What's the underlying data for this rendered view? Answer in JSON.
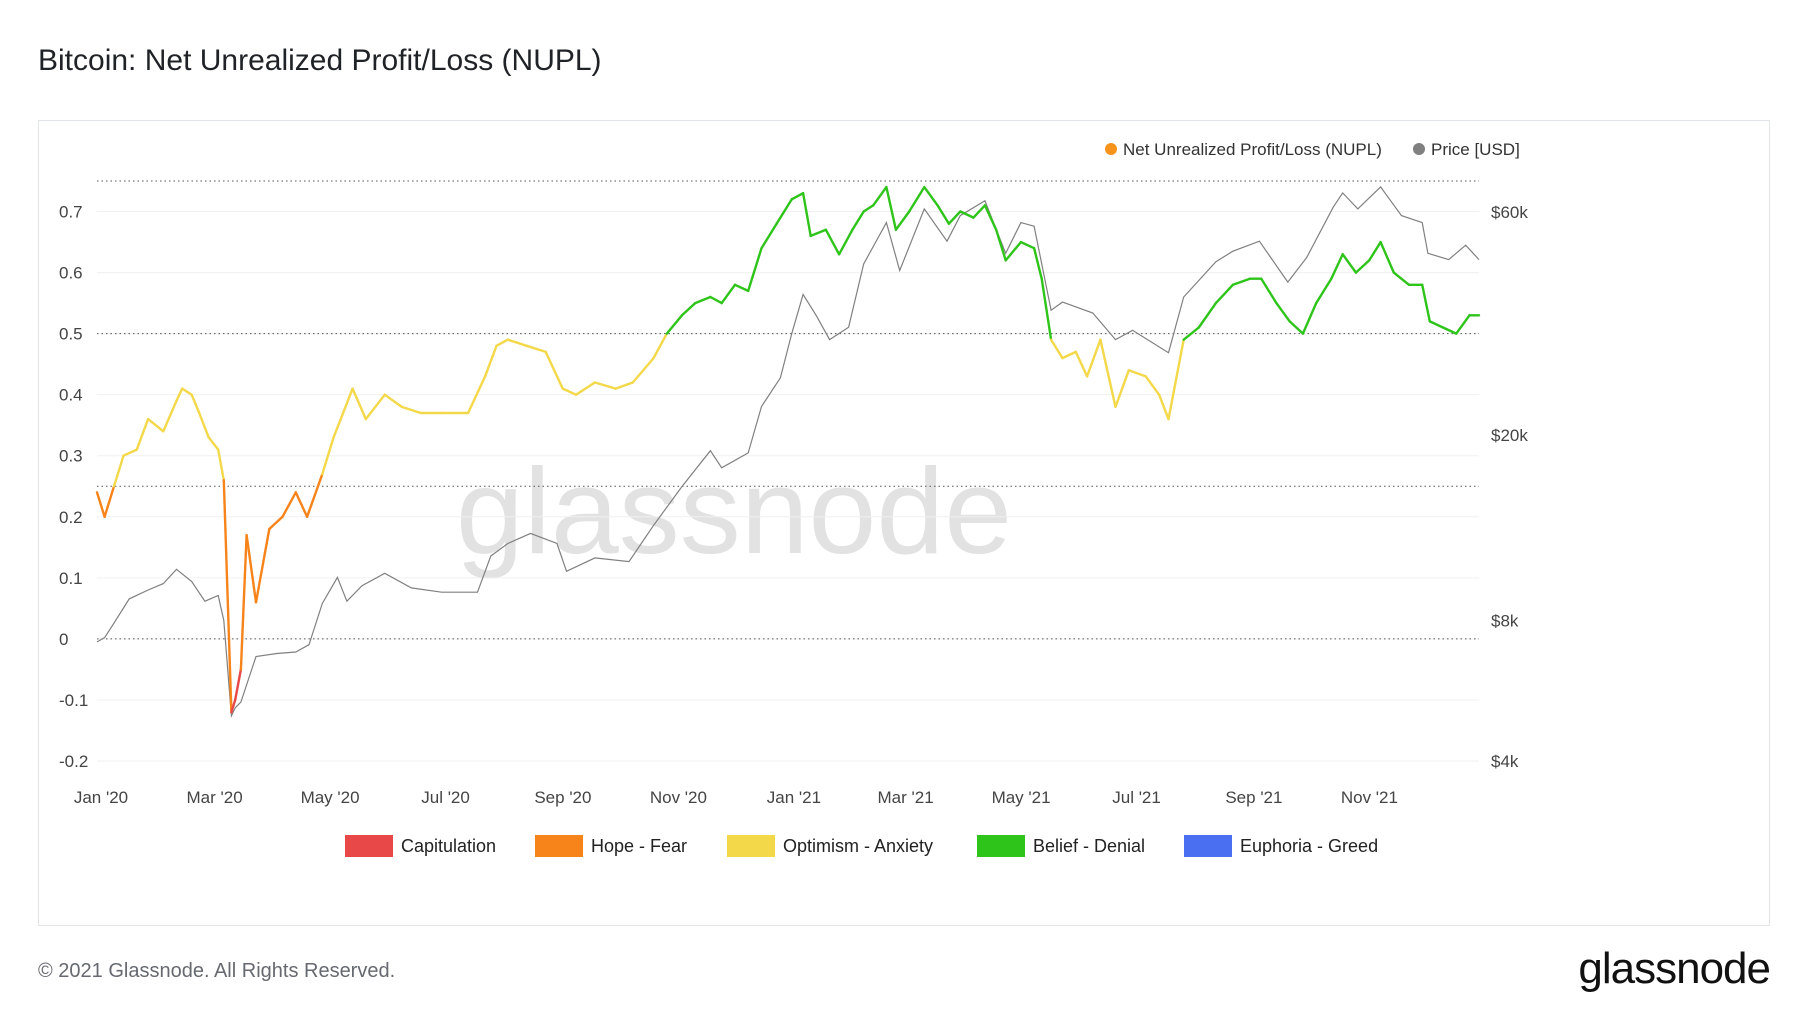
{
  "title": "Bitcoin: Net Unrealized Profit/Loss (NUPL)",
  "footer": {
    "copyright": "© 2021 Glassnode. All Rights Reserved.",
    "logo": "glassnode"
  },
  "watermark": "glassnode",
  "chart_data": {
    "type": "line",
    "title": "Bitcoin: Net Unrealized Profit/Loss (NUPL)",
    "legend_top": [
      {
        "label": "Net Unrealized Profit/Loss (NUPL)",
        "color": "#f7931a"
      },
      {
        "label": "Price [USD]",
        "color": "#808080"
      }
    ],
    "legend_bottom": [
      {
        "label": "Capitulation",
        "color": "#e94848"
      },
      {
        "label": "Hope - Fear",
        "color": "#f7841a"
      },
      {
        "label": "Optimism - Anxiety",
        "color": "#f3d84a"
      },
      {
        "label": "Belief - Denial",
        "color": "#2ec41a"
      },
      {
        "label": "Euphoria - Greed",
        "color": "#4a6ff0"
      }
    ],
    "x_ticks": [
      "Jan '20",
      "Mar '20",
      "May '20",
      "Jul '20",
      "Sep '20",
      "Nov '20",
      "Jan '21",
      "Mar '21",
      "May '21",
      "Jul '21",
      "Sep '21",
      "Nov '21"
    ],
    "y_left": {
      "ticks": [
        "-0.2",
        "-0.1",
        "0",
        "0.1",
        "0.2",
        "0.3",
        "0.4",
        "0.5",
        "0.6",
        "0.7"
      ],
      "range": [
        -0.2,
        0.75
      ]
    },
    "y_right": {
      "ticks": [
        "$4k",
        "$8k",
        "$20k",
        "$60k"
      ],
      "range": [
        4000,
        70000
      ],
      "scale": "log"
    },
    "zone_thresholds": [
      0,
      0.25,
      0.5,
      0.75
    ],
    "x_range": [
      "2020-01-01",
      "2021-12-31"
    ],
    "series": [
      {
        "name": "Net Unrealized Profit/Loss (NUPL)",
        "axis": "left",
        "points": [
          [
            "2020-01-01",
            0.24
          ],
          [
            "2020-01-05",
            0.2
          ],
          [
            "2020-01-10",
            0.25
          ],
          [
            "2020-01-15",
            0.3
          ],
          [
            "2020-01-22",
            0.31
          ],
          [
            "2020-01-28",
            0.36
          ],
          [
            "2020-02-05",
            0.34
          ],
          [
            "2020-02-12",
            0.39
          ],
          [
            "2020-02-15",
            0.41
          ],
          [
            "2020-02-20",
            0.4
          ],
          [
            "2020-02-24",
            0.37
          ],
          [
            "2020-02-29",
            0.33
          ],
          [
            "2020-03-05",
            0.31
          ],
          [
            "2020-03-08",
            0.26
          ],
          [
            "2020-03-12",
            -0.12
          ],
          [
            "2020-03-14",
            -0.1
          ],
          [
            "2020-03-17",
            -0.05
          ],
          [
            "2020-03-20",
            0.17
          ],
          [
            "2020-03-25",
            0.06
          ],
          [
            "2020-04-01",
            0.18
          ],
          [
            "2020-04-08",
            0.2
          ],
          [
            "2020-04-15",
            0.24
          ],
          [
            "2020-04-21",
            0.2
          ],
          [
            "2020-04-29",
            0.27
          ],
          [
            "2020-05-05",
            0.33
          ],
          [
            "2020-05-10",
            0.37
          ],
          [
            "2020-05-15",
            0.41
          ],
          [
            "2020-05-22",
            0.36
          ],
          [
            "2020-06-01",
            0.4
          ],
          [
            "2020-06-10",
            0.38
          ],
          [
            "2020-06-20",
            0.37
          ],
          [
            "2020-07-01",
            0.37
          ],
          [
            "2020-07-15",
            0.37
          ],
          [
            "2020-07-24",
            0.43
          ],
          [
            "2020-07-30",
            0.48
          ],
          [
            "2020-08-05",
            0.49
          ],
          [
            "2020-08-15",
            0.48
          ],
          [
            "2020-08-25",
            0.47
          ],
          [
            "2020-09-03",
            0.41
          ],
          [
            "2020-09-10",
            0.4
          ],
          [
            "2020-09-20",
            0.42
          ],
          [
            "2020-10-01",
            0.41
          ],
          [
            "2020-10-10",
            0.42
          ],
          [
            "2020-10-21",
            0.46
          ],
          [
            "2020-10-28",
            0.5
          ],
          [
            "2020-11-05",
            0.53
          ],
          [
            "2020-11-12",
            0.55
          ],
          [
            "2020-11-20",
            0.56
          ],
          [
            "2020-11-26",
            0.55
          ],
          [
            "2020-12-03",
            0.58
          ],
          [
            "2020-12-10",
            0.57
          ],
          [
            "2020-12-17",
            0.64
          ],
          [
            "2020-12-25",
            0.68
          ],
          [
            "2021-01-02",
            0.72
          ],
          [
            "2021-01-08",
            0.73
          ],
          [
            "2021-01-12",
            0.66
          ],
          [
            "2021-01-20",
            0.67
          ],
          [
            "2021-01-27",
            0.63
          ],
          [
            "2021-02-03",
            0.67
          ],
          [
            "2021-02-09",
            0.7
          ],
          [
            "2021-02-14",
            0.71
          ],
          [
            "2021-02-21",
            0.74
          ],
          [
            "2021-02-26",
            0.67
          ],
          [
            "2021-03-05",
            0.7
          ],
          [
            "2021-03-13",
            0.74
          ],
          [
            "2021-03-20",
            0.71
          ],
          [
            "2021-03-26",
            0.68
          ],
          [
            "2021-04-01",
            0.7
          ],
          [
            "2021-04-08",
            0.69
          ],
          [
            "2021-04-14",
            0.71
          ],
          [
            "2021-04-20",
            0.67
          ],
          [
            "2021-04-25",
            0.62
          ],
          [
            "2021-05-03",
            0.65
          ],
          [
            "2021-05-10",
            0.64
          ],
          [
            "2021-05-14",
            0.59
          ],
          [
            "2021-05-19",
            0.49
          ],
          [
            "2021-05-25",
            0.46
          ],
          [
            "2021-06-01",
            0.47
          ],
          [
            "2021-06-07",
            0.43
          ],
          [
            "2021-06-14",
            0.49
          ],
          [
            "2021-06-22",
            0.38
          ],
          [
            "2021-06-29",
            0.44
          ],
          [
            "2021-07-08",
            0.43
          ],
          [
            "2021-07-15",
            0.4
          ],
          [
            "2021-07-20",
            0.36
          ],
          [
            "2021-07-28",
            0.49
          ],
          [
            "2021-08-05",
            0.51
          ],
          [
            "2021-08-14",
            0.55
          ],
          [
            "2021-08-23",
            0.58
          ],
          [
            "2021-09-01",
            0.59
          ],
          [
            "2021-09-07",
            0.59
          ],
          [
            "2021-09-15",
            0.55
          ],
          [
            "2021-09-22",
            0.52
          ],
          [
            "2021-09-29",
            0.5
          ],
          [
            "2021-10-06",
            0.55
          ],
          [
            "2021-10-14",
            0.59
          ],
          [
            "2021-10-20",
            0.63
          ],
          [
            "2021-10-27",
            0.6
          ],
          [
            "2021-11-03",
            0.62
          ],
          [
            "2021-11-09",
            0.65
          ],
          [
            "2021-11-16",
            0.6
          ],
          [
            "2021-11-24",
            0.58
          ],
          [
            "2021-12-01",
            0.58
          ],
          [
            "2021-12-05",
            0.52
          ],
          [
            "2021-12-12",
            0.51
          ],
          [
            "2021-12-19",
            0.5
          ],
          [
            "2021-12-26",
            0.53
          ],
          [
            "2021-12-31",
            0.53
          ]
        ]
      },
      {
        "name": "Price [USD]",
        "axis": "right",
        "color": "#808080",
        "points": [
          [
            "2020-01-01",
            7200
          ],
          [
            "2020-01-05",
            7350
          ],
          [
            "2020-01-10",
            7900
          ],
          [
            "2020-01-18",
            8900
          ],
          [
            "2020-01-28",
            9300
          ],
          [
            "2020-02-05",
            9600
          ],
          [
            "2020-02-12",
            10300
          ],
          [
            "2020-02-20",
            9700
          ],
          [
            "2020-02-27",
            8800
          ],
          [
            "2020-03-05",
            9050
          ],
          [
            "2020-03-08",
            8000
          ],
          [
            "2020-03-12",
            5000
          ],
          [
            "2020-03-14",
            5200
          ],
          [
            "2020-03-17",
            5350
          ],
          [
            "2020-03-25",
            6700
          ],
          [
            "2020-04-05",
            6800
          ],
          [
            "2020-04-15",
            6850
          ],
          [
            "2020-04-22",
            7100
          ],
          [
            "2020-04-29",
            8700
          ],
          [
            "2020-05-07",
            9900
          ],
          [
            "2020-05-12",
            8800
          ],
          [
            "2020-05-20",
            9500
          ],
          [
            "2020-06-01",
            10100
          ],
          [
            "2020-06-15",
            9400
          ],
          [
            "2020-07-01",
            9200
          ],
          [
            "2020-07-20",
            9200
          ],
          [
            "2020-07-27",
            11000
          ],
          [
            "2020-08-05",
            11700
          ],
          [
            "2020-08-17",
            12300
          ],
          [
            "2020-08-31",
            11700
          ],
          [
            "2020-09-05",
            10200
          ],
          [
            "2020-09-20",
            10900
          ],
          [
            "2020-10-08",
            10700
          ],
          [
            "2020-10-21",
            12800
          ],
          [
            "2020-11-05",
            15500
          ],
          [
            "2020-11-20",
            18500
          ],
          [
            "2020-11-26",
            17000
          ],
          [
            "2020-12-10",
            18300
          ],
          [
            "2020-12-17",
            23000
          ],
          [
            "2020-12-27",
            26500
          ],
          [
            "2021-01-02",
            33000
          ],
          [
            "2021-01-08",
            40000
          ],
          [
            "2021-01-15",
            36000
          ],
          [
            "2021-01-22",
            32000
          ],
          [
            "2021-02-01",
            34000
          ],
          [
            "2021-02-09",
            46500
          ],
          [
            "2021-02-21",
            57000
          ],
          [
            "2021-02-28",
            45000
          ],
          [
            "2021-03-13",
            61000
          ],
          [
            "2021-03-25",
            52000
          ],
          [
            "2021-04-01",
            59000
          ],
          [
            "2021-04-14",
            63500
          ],
          [
            "2021-04-25",
            49000
          ],
          [
            "2021-05-03",
            57000
          ],
          [
            "2021-05-10",
            56000
          ],
          [
            "2021-05-19",
            37000
          ],
          [
            "2021-05-25",
            38500
          ],
          [
            "2021-06-10",
            36500
          ],
          [
            "2021-06-22",
            32000
          ],
          [
            "2021-07-01",
            33500
          ],
          [
            "2021-07-20",
            30000
          ],
          [
            "2021-07-28",
            39500
          ],
          [
            "2021-08-14",
            47000
          ],
          [
            "2021-08-23",
            49500
          ],
          [
            "2021-09-06",
            52000
          ],
          [
            "2021-09-21",
            42500
          ],
          [
            "2021-10-01",
            48000
          ],
          [
            "2021-10-15",
            61500
          ],
          [
            "2021-10-20",
            66000
          ],
          [
            "2021-10-28",
            61000
          ],
          [
            "2021-11-09",
            68000
          ],
          [
            "2021-11-20",
            59000
          ],
          [
            "2021-12-01",
            57000
          ],
          [
            "2021-12-04",
            49000
          ],
          [
            "2021-12-15",
            47500
          ],
          [
            "2021-12-24",
            51000
          ],
          [
            "2021-12-31",
            47500
          ]
        ]
      }
    ]
  }
}
